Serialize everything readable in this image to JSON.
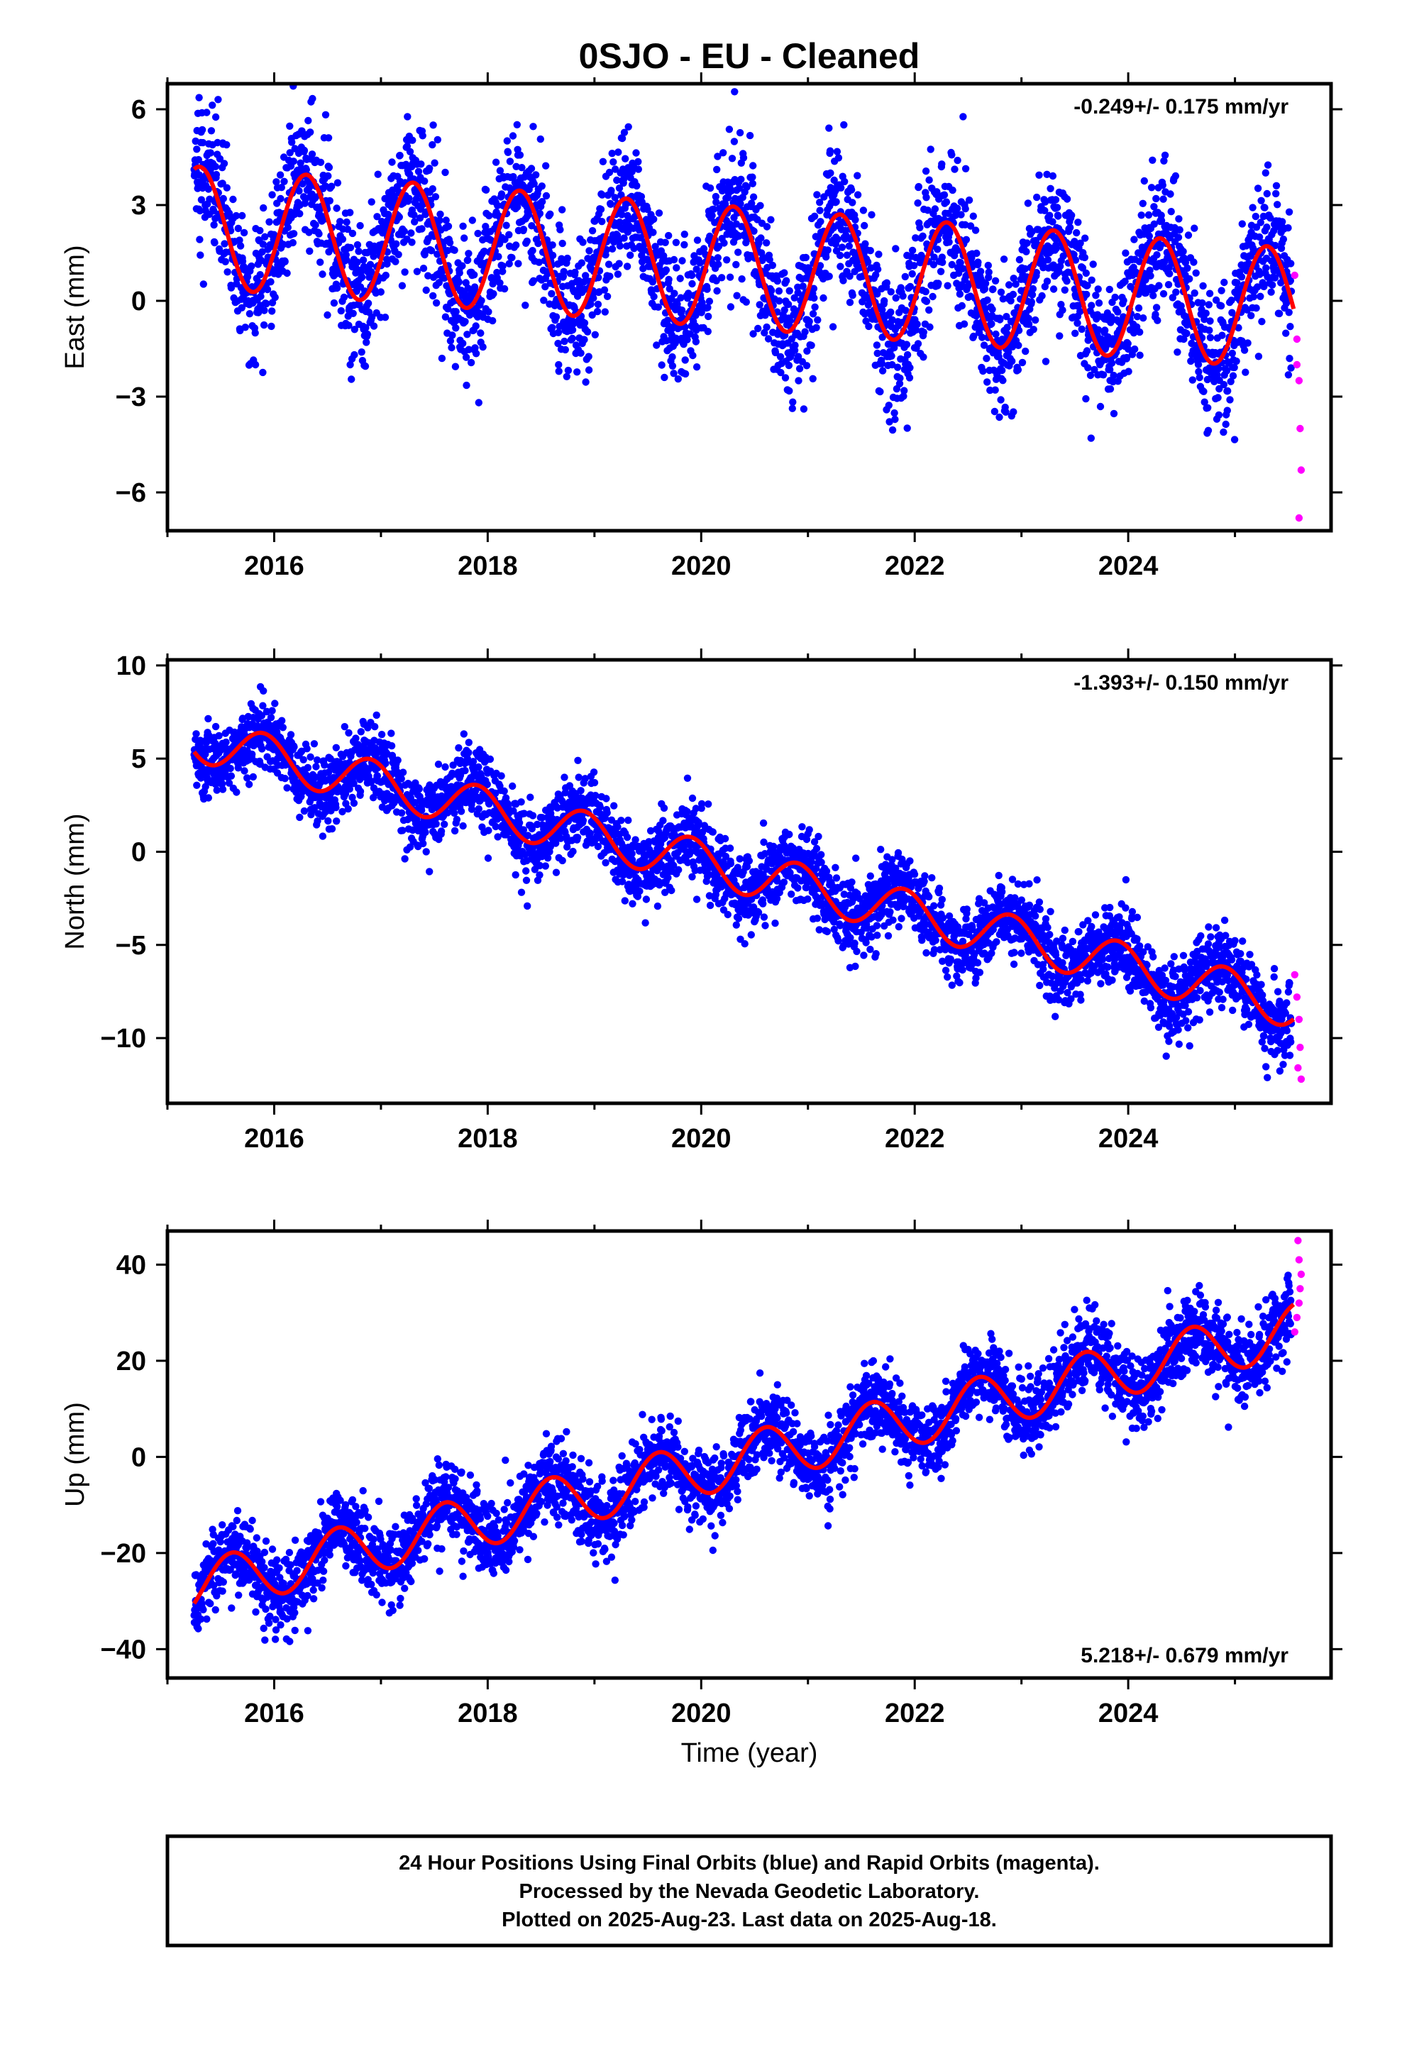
{
  "title": "0SJO  - EU - Cleaned",
  "xlabel": "Time (year)",
  "footer": {
    "line1": "24 Hour Positions Using Final Orbits (blue) and Rapid Orbits (magenta).",
    "line2": "Processed by the Nevada Geodetic Laboratory.",
    "line3": "Plotted on 2025-Aug-23. Last data on 2025-Aug-18."
  },
  "colors": {
    "final_orbits": "#0000ff",
    "rapid_orbits": "#ff00ff",
    "model_fit": "#ff0000"
  },
  "chart_data": [
    {
      "type": "scatter",
      "ylabel": "East (mm)",
      "xlim": [
        2015.0,
        2025.9
      ],
      "ylim": [
        -7.2,
        6.8
      ],
      "xticks": [
        2016,
        2018,
        2020,
        2022,
        2024
      ],
      "yticks": [
        6,
        3,
        0,
        -3,
        -6
      ],
      "ytick_labels": [
        "6",
        "3",
        "0",
        "−3",
        "−6"
      ],
      "rate_label": "-0.249+/- 0.175 mm/yr",
      "rate_position": "top-right",
      "seasonal": {
        "trend_start": [
          2015.3,
          2.3
        ],
        "rate_mm_per_yr": -0.249,
        "annual_amplitude": 1.9,
        "annual_peak": 2015.3,
        "scatter_sd": 1.1,
        "data_end": 2025.55
      },
      "series": [
        {
          "name": "Final Orbits",
          "color": "#0000ff",
          "x_range": [
            2015.25,
            2025.53
          ]
        },
        {
          "name": "Rapid Orbits",
          "color": "#ff00ff",
          "x": [
            2025.56,
            2025.58,
            2025.6,
            2025.61,
            2025.62,
            2025.6,
            2025.58
          ],
          "y": [
            0.8,
            -1.2,
            -2.5,
            -4.0,
            -5.3,
            -6.8,
            -2.0
          ]
        }
      ]
    },
    {
      "type": "scatter",
      "ylabel": "North (mm)",
      "xlim": [
        2015.0,
        2025.9
      ],
      "ylim": [
        -13.5,
        10.3
      ],
      "xticks": [
        2016,
        2018,
        2020,
        2022,
        2024
      ],
      "yticks": [
        10,
        5,
        0,
        -5,
        -10
      ],
      "ytick_labels": [
        "10",
        "5",
        "0",
        "−5",
        "−10"
      ],
      "rate_label": "-1.393+/- 0.150 mm/yr",
      "rate_position": "top-right",
      "seasonal": {
        "trend_start": [
          2015.3,
          6.0
        ],
        "rate_mm_per_yr": -1.393,
        "annual_amplitude": 1.2,
        "annual_peak": 2015.9,
        "scatter_sd": 1.0,
        "data_end": 2025.55
      },
      "series": [
        {
          "name": "Final Orbits",
          "color": "#0000ff",
          "x_range": [
            2015.25,
            2025.53
          ]
        },
        {
          "name": "Rapid Orbits",
          "color": "#ff00ff",
          "x": [
            2025.56,
            2025.58,
            2025.6,
            2025.61,
            2025.59,
            2025.62
          ],
          "y": [
            -6.6,
            -7.8,
            -9.0,
            -10.5,
            -11.6,
            -12.2
          ]
        }
      ]
    },
    {
      "type": "scatter",
      "ylabel": "Up (mm)",
      "xlim": [
        2015.0,
        2025.9
      ],
      "ylim": [
        -46,
        47
      ],
      "xticks": [
        2016,
        2018,
        2020,
        2022,
        2024
      ],
      "yticks": [
        40,
        20,
        0,
        -20,
        -40
      ],
      "ytick_labels": [
        "40",
        "20",
        "0",
        "−20",
        "−40"
      ],
      "rate_label": "5.218+/- 0.679 mm/yr",
      "rate_position": "bottom-right",
      "seasonal": {
        "trend_start": [
          2015.3,
          -27.0
        ],
        "rate_mm_per_yr": 5.218,
        "annual_amplitude": 5.5,
        "annual_peak": 2015.6,
        "scatter_sd": 4.0,
        "data_end": 2025.55
      },
      "series": [
        {
          "name": "Final Orbits",
          "color": "#0000ff",
          "x_range": [
            2015.25,
            2025.53
          ]
        },
        {
          "name": "Rapid Orbits",
          "color": "#ff00ff",
          "x": [
            2025.56,
            2025.58,
            2025.6,
            2025.61,
            2025.62,
            2025.6,
            2025.59
          ],
          "y": [
            26,
            29,
            32,
            35,
            38,
            41,
            45
          ]
        }
      ]
    }
  ]
}
